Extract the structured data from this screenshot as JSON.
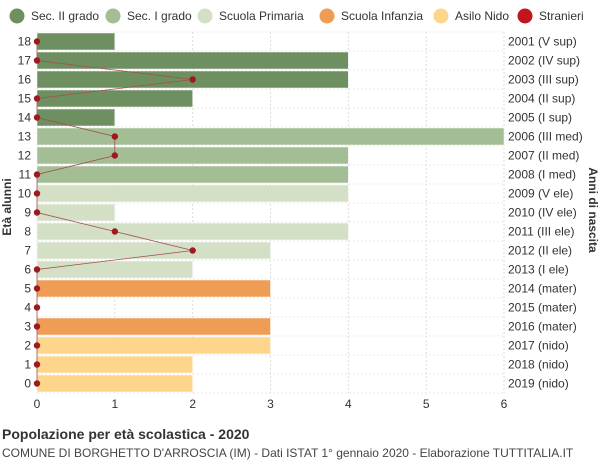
{
  "chart_data": {
    "type": "bar",
    "orientation": "horizontal",
    "legend_position": "top",
    "grid": true,
    "xlim": [
      0,
      6
    ],
    "x_ticks": [
      0,
      1,
      2,
      3,
      4,
      5,
      6
    ],
    "ylabel_left": "Età alunni",
    "ylabel_right": "Anni di nascita",
    "legend": [
      {
        "name": "Sec. II grado",
        "color": "#6e8f5f"
      },
      {
        "name": "Sec. I grado",
        "color": "#a3bd94"
      },
      {
        "name": "Scuola Primaria",
        "color": "#d3e0c6"
      },
      {
        "name": "Scuola Infanzia",
        "color": "#ef9c55"
      },
      {
        "name": "Asilo Nido",
        "color": "#fdd68c"
      },
      {
        "name": "Stranieri",
        "color": "#c0161d"
      }
    ],
    "rows": [
      {
        "age": "18",
        "year": "2001 (V sup)",
        "value": 1,
        "stranieri": 0,
        "group": "Sec. II grado"
      },
      {
        "age": "17",
        "year": "2002 (IV sup)",
        "value": 4,
        "stranieri": 0,
        "group": "Sec. II grado"
      },
      {
        "age": "16",
        "year": "2003 (III sup)",
        "value": 4,
        "stranieri": 2,
        "group": "Sec. II grado"
      },
      {
        "age": "15",
        "year": "2004 (II sup)",
        "value": 2,
        "stranieri": 0,
        "group": "Sec. II grado"
      },
      {
        "age": "14",
        "year": "2005 (I sup)",
        "value": 1,
        "stranieri": 0,
        "group": "Sec. II grado"
      },
      {
        "age": "13",
        "year": "2006 (III med)",
        "value": 6,
        "stranieri": 1,
        "group": "Sec. I grado"
      },
      {
        "age": "12",
        "year": "2007 (II med)",
        "value": 4,
        "stranieri": 1,
        "group": "Sec. I grado"
      },
      {
        "age": "11",
        "year": "2008 (I med)",
        "value": 4,
        "stranieri": 0,
        "group": "Sec. I grado"
      },
      {
        "age": "10",
        "year": "2009 (V ele)",
        "value": 4,
        "stranieri": 0,
        "group": "Scuola Primaria"
      },
      {
        "age": "9",
        "year": "2010 (IV ele)",
        "value": 1,
        "stranieri": 0,
        "group": "Scuola Primaria"
      },
      {
        "age": "8",
        "year": "2011 (III ele)",
        "value": 4,
        "stranieri": 1,
        "group": "Scuola Primaria"
      },
      {
        "age": "7",
        "year": "2012 (II ele)",
        "value": 3,
        "stranieri": 2,
        "group": "Scuola Primaria"
      },
      {
        "age": "6",
        "year": "2013 (I ele)",
        "value": 2,
        "stranieri": 0,
        "group": "Scuola Primaria"
      },
      {
        "age": "5",
        "year": "2014 (mater)",
        "value": 3,
        "stranieri": 0,
        "group": "Scuola Infanzia"
      },
      {
        "age": "4",
        "year": "2015 (mater)",
        "value": 0,
        "stranieri": 0,
        "group": "Scuola Infanzia"
      },
      {
        "age": "3",
        "year": "2016 (mater)",
        "value": 3,
        "stranieri": 0,
        "group": "Scuola Infanzia"
      },
      {
        "age": "2",
        "year": "2017 (nido)",
        "value": 3,
        "stranieri": 0,
        "group": "Asilo Nido"
      },
      {
        "age": "1",
        "year": "2018 (nido)",
        "value": 2,
        "stranieri": 0,
        "group": "Asilo Nido"
      },
      {
        "age": "0",
        "year": "2019 (nido)",
        "value": 2,
        "stranieri": 0,
        "group": "Asilo Nido"
      }
    ]
  },
  "caption": {
    "title": "Popolazione per età scolastica - 2020",
    "subtitle": "COMUNE DI BORGHETTO D'ARROSCIA (IM) - Dati ISTAT 1° gennaio 2020 - Elaborazione TUTTITALIA.IT"
  }
}
